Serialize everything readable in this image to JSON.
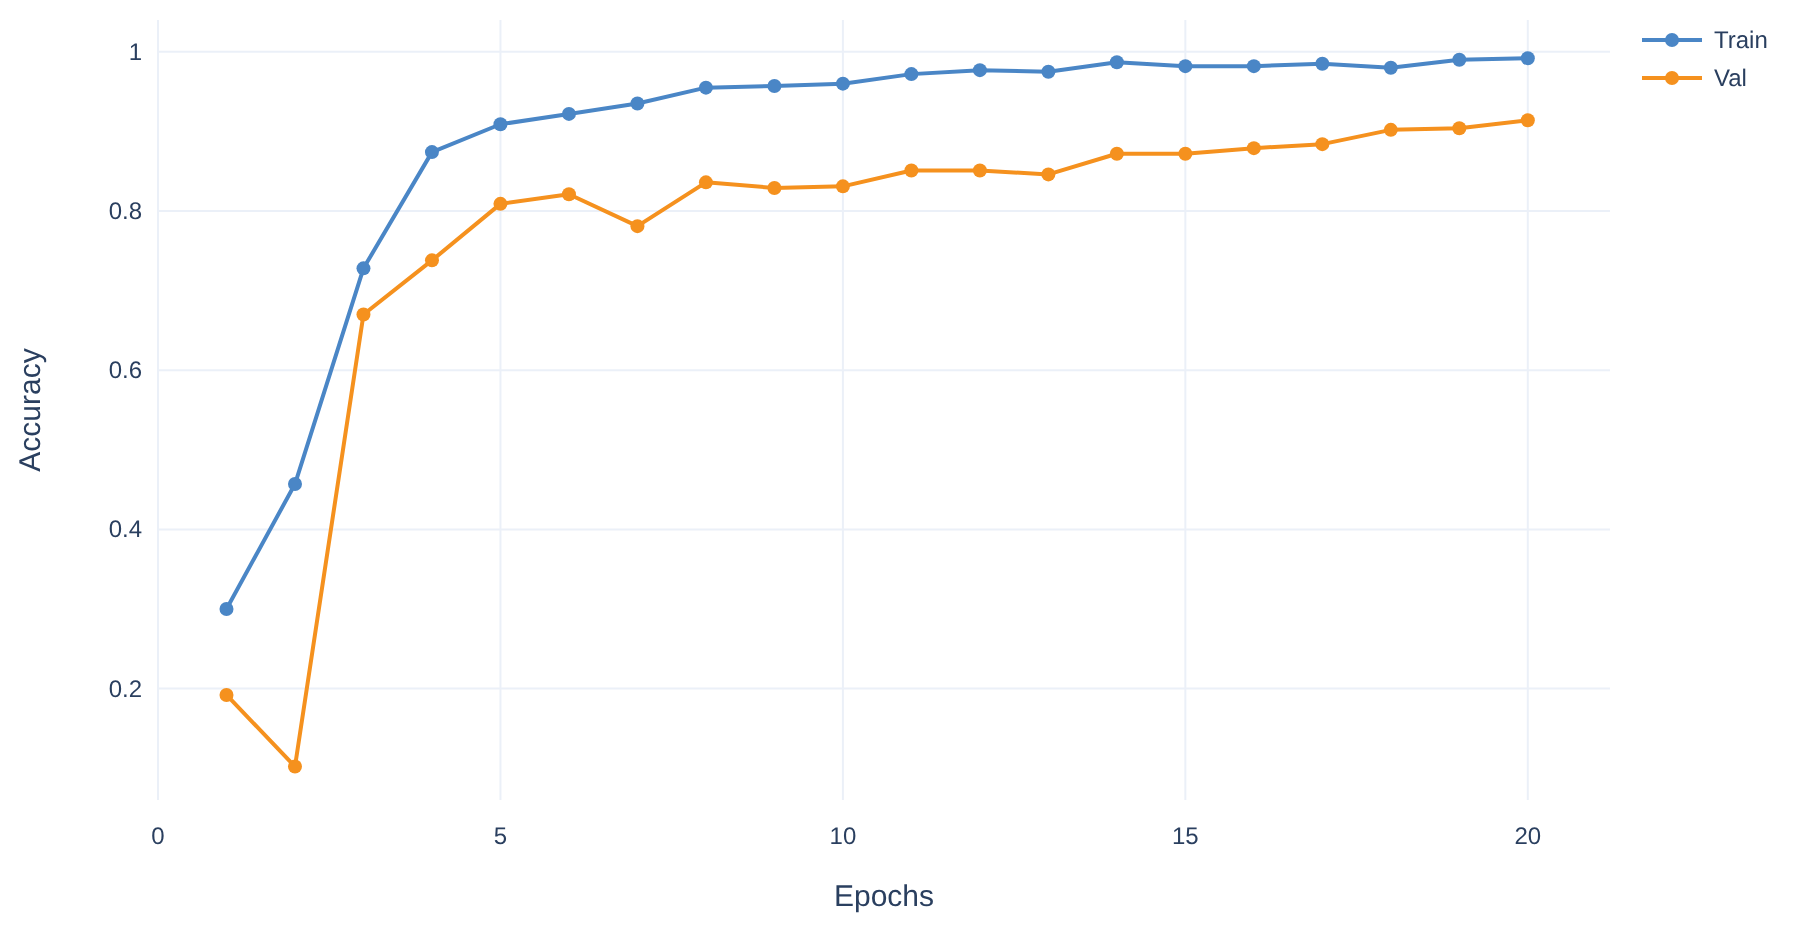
{
  "chart_data": {
    "type": "line",
    "xlabel": "Epochs",
    "ylabel": "Accuracy",
    "x": [
      1,
      2,
      3,
      4,
      5,
      6,
      7,
      8,
      9,
      10,
      11,
      12,
      13,
      14,
      15,
      16,
      17,
      18,
      19,
      20
    ],
    "series": [
      {
        "name": "Train",
        "color": "#4a86c6",
        "values": [
          0.3,
          0.457,
          0.728,
          0.874,
          0.909,
          0.922,
          0.935,
          0.955,
          0.957,
          0.96,
          0.972,
          0.977,
          0.975,
          0.987,
          0.982,
          0.982,
          0.985,
          0.98,
          0.99,
          0.992
        ]
      },
      {
        "name": "Val",
        "color": "#f5911e",
        "values": [
          0.192,
          0.102,
          0.67,
          0.738,
          0.809,
          0.821,
          0.781,
          0.836,
          0.829,
          0.831,
          0.851,
          0.851,
          0.846,
          0.872,
          0.872,
          0.879,
          0.884,
          0.902,
          0.904,
          0.914
        ]
      }
    ],
    "xlim": [
      0,
      21.2
    ],
    "xticks": [
      0,
      5,
      10,
      15,
      20
    ],
    "ylim": [
      0.06,
      1.04
    ],
    "yticks": [
      0.2,
      0.4,
      0.6,
      0.8,
      1
    ],
    "grid": true,
    "legend": "top right",
    "marker": "circle",
    "line_style": "solid"
  }
}
